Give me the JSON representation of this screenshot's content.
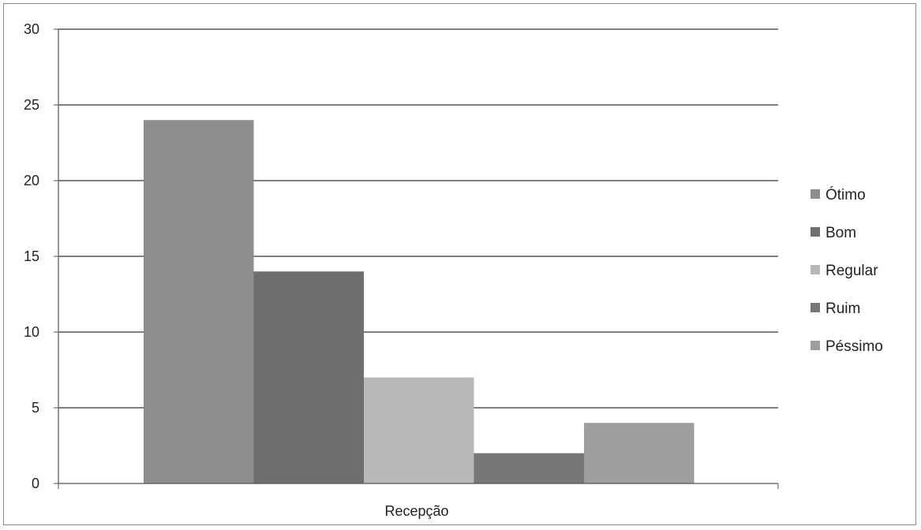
{
  "chart_data": {
    "type": "bar",
    "categories": [
      "Recepção"
    ],
    "series": [
      {
        "name": "Ótimo",
        "values": [
          24
        ],
        "color": "#8e8e8e"
      },
      {
        "name": "Bom",
        "values": [
          14
        ],
        "color": "#6f6f6f"
      },
      {
        "name": "Regular",
        "values": [
          7
        ],
        "color": "#b8b8b8"
      },
      {
        "name": "Ruim",
        "values": [
          2
        ],
        "color": "#777777"
      },
      {
        "name": "Péssimo",
        "values": [
          4
        ],
        "color": "#9e9e9e"
      }
    ],
    "title": "",
    "xlabel": "",
    "ylabel": "",
    "ylim": [
      0,
      30
    ],
    "yticks": [
      0,
      5,
      10,
      15,
      20,
      25,
      30
    ],
    "grid": true,
    "legend_position": "right",
    "grid_color": "#333333",
    "axis_color": "#555555"
  }
}
